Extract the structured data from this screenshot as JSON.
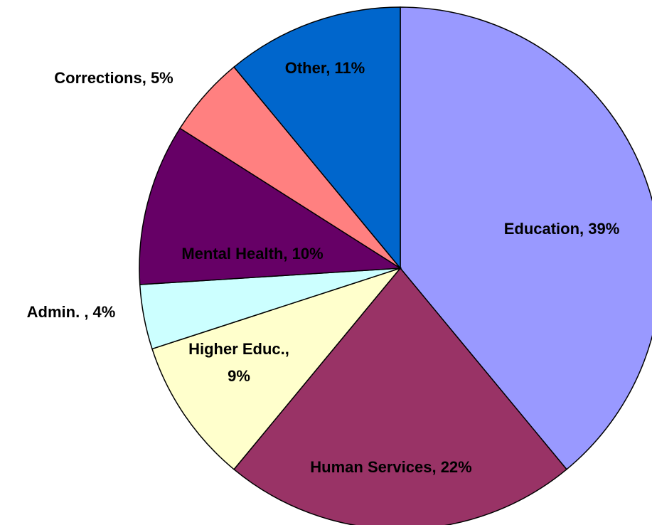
{
  "chart_data": {
    "type": "pie",
    "values": [
      39,
      22,
      9,
      4,
      10,
      5,
      11
    ],
    "value_labels": [
      "Education, 39%",
      "Human Services, 22%",
      "Higher Educ., 9%",
      "Admin. , 4%",
      "Mental Health, 10%",
      "Corrections, 5%",
      "Other, 11%"
    ],
    "colors": [
      "#9999ff",
      "#993366",
      "#ffffcc",
      "#ccffff",
      "#660066",
      "#ff8080",
      "#0066cc"
    ],
    "start_angle": 0,
    "direction": "clockwise"
  }
}
